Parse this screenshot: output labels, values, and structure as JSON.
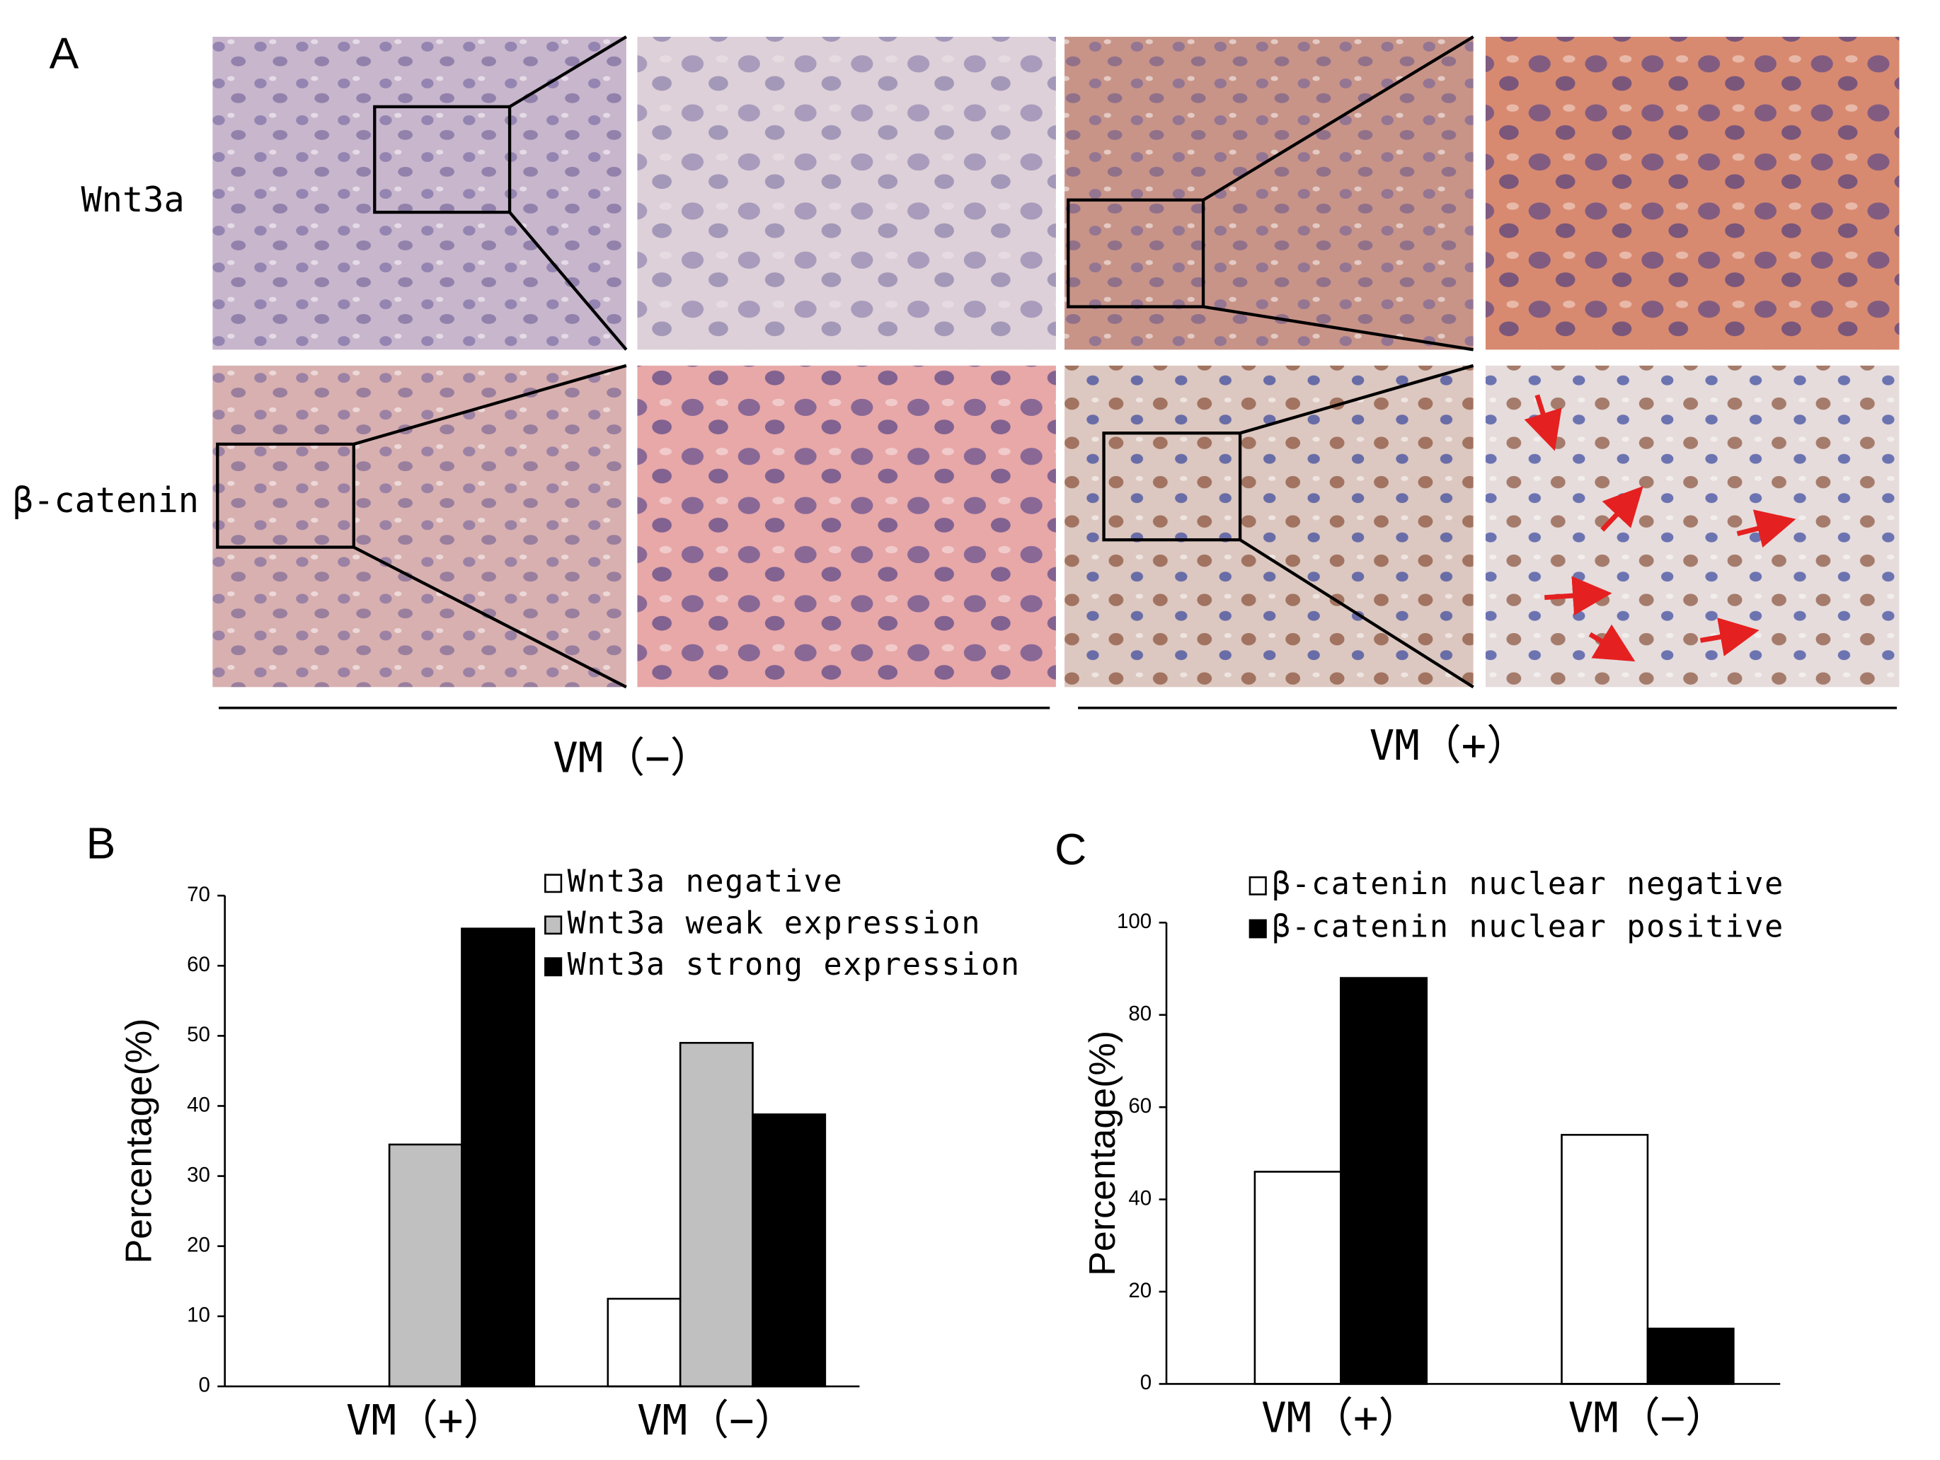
{
  "panel_a": {
    "label": "A",
    "row_labels": [
      "Wnt3a",
      "β-catenin"
    ],
    "group_labels": [
      "VM（−）",
      "VM（+）"
    ]
  },
  "chart_data": [
    {
      "type": "bar",
      "panel_label": "B",
      "y_label": "Percentage(%)",
      "categories": [
        "VM（+）",
        "VM（−）"
      ],
      "series": [
        {
          "name": "Wnt3a negative",
          "color": "#ffffff",
          "values": [
            0,
            12.5
          ]
        },
        {
          "name": "Wnt3a weak expression",
          "color": "#c0c0c0",
          "values": [
            34.5,
            49
          ]
        },
        {
          "name": "Wnt3a strong expression",
          "color": "#000000",
          "values": [
            65.3,
            38.8
          ]
        }
      ],
      "ylim": [
        0,
        70
      ],
      "yticks": [
        0,
        10,
        20,
        30,
        40,
        50,
        60,
        70
      ]
    },
    {
      "type": "bar",
      "panel_label": "C",
      "y_label": "Percentage(%)",
      "categories": [
        "VM（+）",
        "VM（−）"
      ],
      "series": [
        {
          "name": "β-catenin nuclear negative",
          "color": "#ffffff",
          "values": [
            46,
            54
          ]
        },
        {
          "name": "β-catenin nuclear positive",
          "color": "#000000",
          "values": [
            88,
            12
          ]
        }
      ],
      "ylim": [
        0,
        100
      ],
      "yticks": [
        0,
        20,
        40,
        60,
        80,
        100
      ]
    }
  ]
}
